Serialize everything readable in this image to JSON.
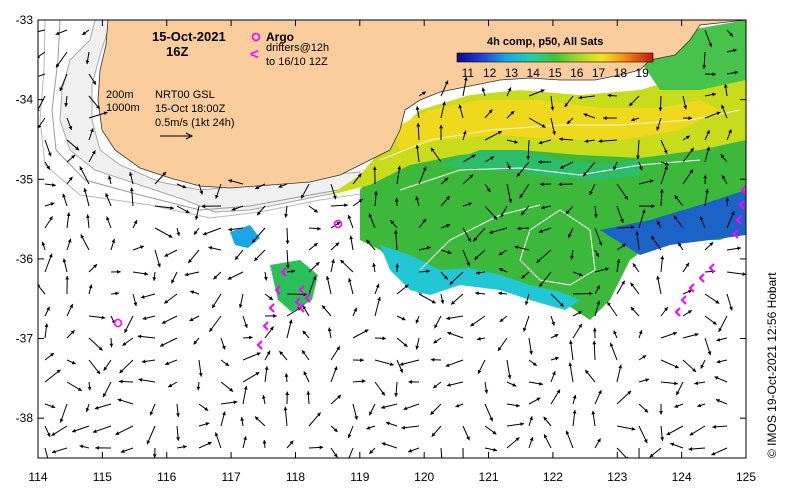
{
  "map": {
    "date": "15-Oct-2021",
    "hour": "16Z",
    "legend": {
      "argo_label": "Argo",
      "drifters_label": "drifters@12h",
      "drifters_to": "to 16/10 12Z",
      "drifter_symbol": "<"
    },
    "depth_labels": [
      "200m",
      "1000m"
    ],
    "altimetry": {
      "product": "NRT00 GSL",
      "time": "15-Oct 18:00Z",
      "scale": "0.5m/s (1kt 24h)"
    },
    "colorbar": {
      "title": "4h comp, p50, All Sats",
      "ticks": [
        "11",
        "12",
        "13",
        "14",
        "15",
        "16",
        "17",
        "18",
        "19"
      ],
      "range": [
        10.5,
        19.5
      ]
    },
    "axes": {
      "x_ticks": [
        "114",
        "115",
        "116",
        "117",
        "118",
        "119",
        "120",
        "121",
        "122",
        "123",
        "124",
        "125"
      ],
      "y_ticks": [
        "-33",
        "-34",
        "-35",
        "-36",
        "-37",
        "-38"
      ],
      "lon_range": [
        114,
        125
      ],
      "lat_range": [
        -38.5,
        -33
      ]
    },
    "credit": "© IMOS 19-Oct-2021 12:56 Hobart",
    "colors": {
      "land": "#fbcd9c",
      "shelf": "#f0f0f0",
      "argo": "#ff00ff",
      "drifter": "#ff00ff"
    }
  }
}
